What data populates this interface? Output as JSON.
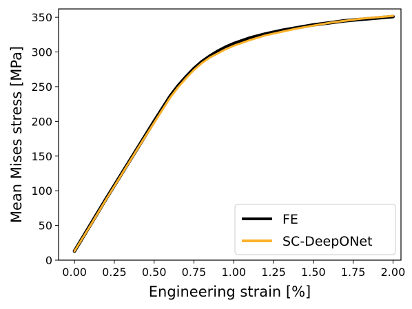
{
  "chart_data": {
    "type": "line",
    "title": "",
    "xlabel": "Engineering strain [%]",
    "ylabel": "Mean Mises stress [MPa]",
    "xlim": [
      -0.1,
      2.05
    ],
    "ylim": [
      0,
      362
    ],
    "xticks": [
      0.0,
      0.25,
      0.5,
      0.75,
      1.0,
      1.25,
      1.5,
      1.75,
      2.0
    ],
    "xtick_labels": [
      "0.00",
      "0.25",
      "0.50",
      "0.75",
      "1.00",
      "1.25",
      "1.50",
      "1.75",
      "2.00"
    ],
    "yticks": [
      0,
      50,
      100,
      150,
      200,
      250,
      300,
      350
    ],
    "ytick_labels": [
      "0",
      "50",
      "100",
      "150",
      "200",
      "250",
      "300",
      "350"
    ],
    "grid": false,
    "legend": "bottom-right",
    "series": [
      {
        "name": "FE",
        "color": "#000000",
        "x": [
          0.0,
          0.1,
          0.2,
          0.3,
          0.4,
          0.5,
          0.55,
          0.6,
          0.65,
          0.7,
          0.75,
          0.8,
          0.85,
          0.9,
          0.95,
          1.0,
          1.05,
          1.1,
          1.2,
          1.3,
          1.4,
          1.5,
          1.6,
          1.7,
          1.8,
          1.9,
          2.0
        ],
        "y": [
          13,
          51,
          89,
          126,
          163,
          200,
          218,
          236,
          251,
          264,
          276,
          286,
          294,
          301,
          307,
          312,
          316,
          320,
          326,
          331,
          335,
          339,
          342,
          345,
          347,
          349,
          351
        ]
      },
      {
        "name": "SC-DeepONet",
        "color": "#fbb22b",
        "x": [
          0.0,
          0.1,
          0.2,
          0.3,
          0.4,
          0.5,
          0.55,
          0.6,
          0.65,
          0.7,
          0.75,
          0.8,
          0.85,
          0.9,
          0.95,
          1.0,
          1.05,
          1.1,
          1.2,
          1.3,
          1.4,
          1.5,
          1.6,
          1.7,
          1.8,
          1.9,
          2.0
        ],
        "y": [
          13,
          50,
          88,
          125,
          162,
          198,
          216,
          234,
          249,
          262,
          274,
          284,
          292,
          298,
          304,
          309,
          313,
          317,
          324,
          329,
          334,
          338,
          342,
          345,
          348,
          350,
          352
        ]
      }
    ]
  }
}
